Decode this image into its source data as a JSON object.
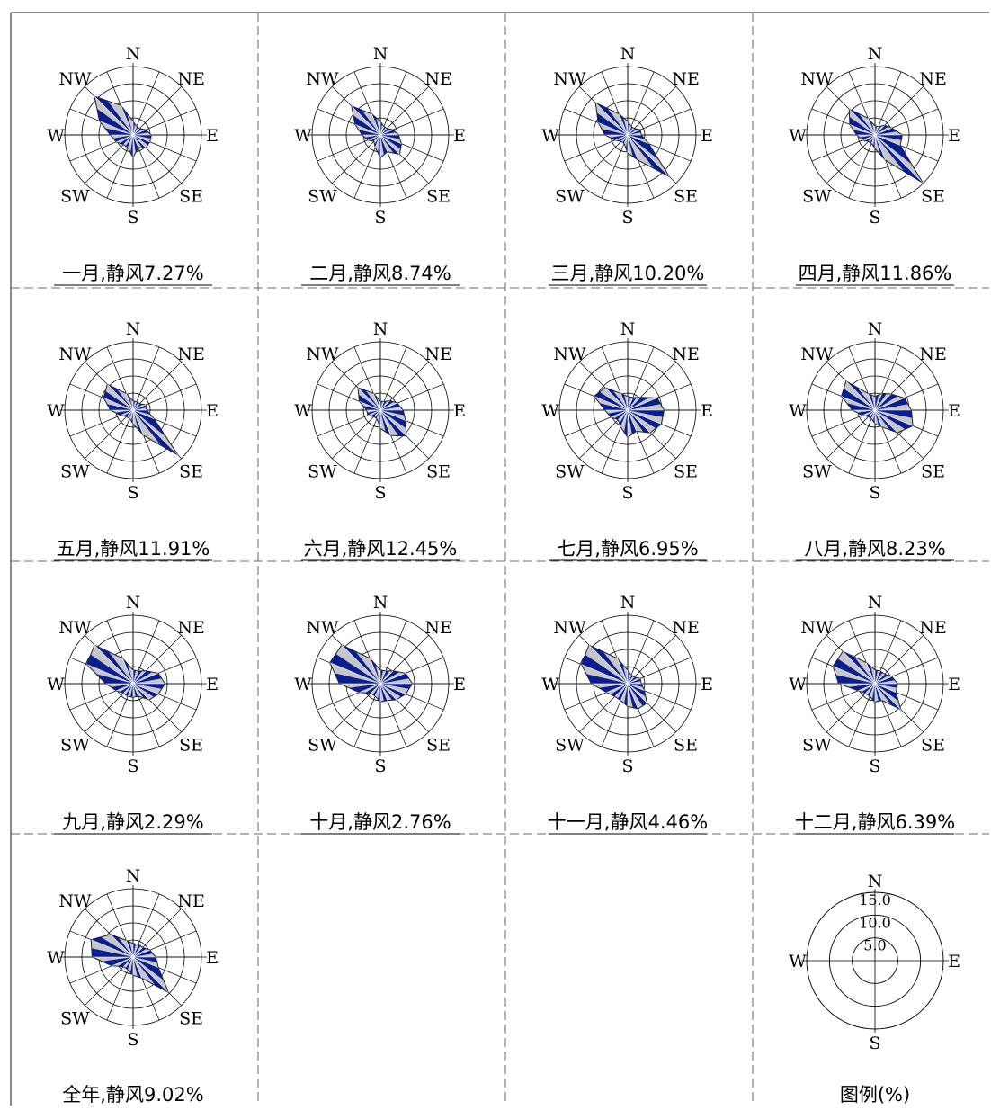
{
  "chart_data": {
    "type": "radar",
    "directions": [
      "N",
      "NNE",
      "NE",
      "ENE",
      "E",
      "ESE",
      "SE",
      "SSE",
      "S",
      "SSW",
      "SW",
      "WSW",
      "W",
      "WNW",
      "NW",
      "NNW"
    ],
    "direction_labels": {
      "N": "N",
      "NE": "NE",
      "E": "E",
      "SE": "SE",
      "S": "S",
      "SW": "SW",
      "W": "W",
      "NW": "NW"
    },
    "unit_max": 15,
    "charts": [
      {
        "caption": "一月,静风7.27%",
        "values": [
          3,
          2,
          2,
          3,
          4,
          4,
          4,
          3,
          5,
          3,
          3,
          4,
          5,
          8,
          12,
          7
        ]
      },
      {
        "caption": "二月,静风8.74%",
        "values": [
          3,
          2,
          2,
          3,
          4,
          5,
          6,
          4,
          5,
          3,
          2,
          3,
          4,
          6,
          9,
          5
        ]
      },
      {
        "caption": "三月,静风10.20%",
        "values": [
          3,
          2,
          2,
          3,
          3,
          5,
          13,
          6,
          4,
          2,
          2,
          3,
          5,
          7,
          10,
          5
        ]
      },
      {
        "caption": "四月,静风11.86%",
        "values": [
          2,
          2,
          3,
          4,
          6,
          6,
          15,
          6,
          3,
          2,
          2,
          3,
          4,
          6,
          8,
          4
        ]
      },
      {
        "caption": "五月,静风11.91%",
        "values": [
          2,
          2,
          2,
          3,
          3,
          5,
          14,
          6,
          3,
          2,
          2,
          3,
          5,
          7,
          8,
          4
        ]
      },
      {
        "caption": "六月,静风12.45%",
        "values": [
          2,
          2,
          3,
          4,
          5,
          6,
          8,
          6,
          4,
          2,
          2,
          3,
          3,
          5,
          7,
          4
        ]
      },
      {
        "caption": "七月,静风6.95%",
        "values": [
          3,
          3,
          4,
          7,
          8,
          8,
          7,
          5,
          6,
          4,
          3,
          4,
          5,
          8,
          7,
          4
        ]
      },
      {
        "caption": "八月,静风8.23%",
        "values": [
          3,
          4,
          5,
          7,
          8,
          9,
          7,
          4,
          3,
          2,
          2,
          3,
          5,
          8,
          9,
          4
        ]
      },
      {
        "caption": "九月,静风2.29%",
        "values": [
          3,
          3,
          4,
          6,
          7,
          6,
          5,
          3,
          3,
          3,
          3,
          4,
          6,
          11,
          12,
          6
        ]
      },
      {
        "caption": "十月,静风2.76%",
        "values": [
          3,
          3,
          4,
          6,
          7,
          6,
          5,
          4,
          4,
          3,
          3,
          5,
          9,
          12,
          12,
          6
        ]
      },
      {
        "caption": "十一月,静风4.46%",
        "values": [
          3,
          2,
          2,
          3,
          3,
          4,
          6,
          6,
          5,
          4,
          4,
          5,
          8,
          11,
          12,
          6
        ]
      },
      {
        "caption": "十二月,静风6.39%",
        "values": [
          3,
          3,
          3,
          4,
          5,
          5,
          8,
          4,
          4,
          3,
          3,
          4,
          8,
          10,
          10,
          5
        ]
      },
      {
        "caption": "全年,静风9.02%",
        "values": [
          3,
          3,
          3,
          4,
          5,
          6,
          11,
          5,
          4,
          3,
          3,
          5,
          9,
          10,
          7,
          4
        ]
      }
    ],
    "legend": {
      "caption": "图例(%)",
      "rings": [
        5,
        10,
        15
      ],
      "ring_labels": [
        "5.0",
        "10.0",
        "15.0"
      ],
      "direction_labels": {
        "N": "N",
        "E": "E",
        "S": "S",
        "W": "W"
      }
    },
    "colors": {
      "dark": "#0a1f8f",
      "light": "#c7c7cb",
      "grid": "#000000",
      "frame": "#8a8a8a"
    }
  }
}
